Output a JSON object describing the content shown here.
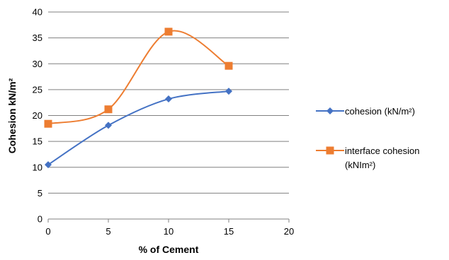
{
  "chart_data": {
    "type": "line",
    "xlabel": "% of Cement",
    "ylabel": "Cohesion kN/m²",
    "xlim": [
      0,
      20
    ],
    "ylim": [
      0,
      40
    ],
    "xticks": [
      "0",
      "5",
      "10",
      "15",
      "20"
    ],
    "yticks": [
      "0",
      "5",
      "10",
      "15",
      "20",
      "25",
      "30",
      "35",
      "40"
    ],
    "grid": "horizontal",
    "legend_position": "right",
    "smooth": true,
    "series": [
      {
        "name": "cohesion (kN/m²)",
        "color": "#4472C4",
        "marker": "diamond",
        "x": [
          0,
          5,
          10,
          15
        ],
        "y": [
          10.5,
          18.1,
          23.2,
          24.7
        ]
      },
      {
        "name_lines": [
          "interface cohesion",
          "(kNIm²)"
        ],
        "color": "#ED7D31",
        "marker": "square",
        "x": [
          0,
          5,
          10,
          15
        ],
        "y": [
          18.4,
          21.2,
          36.2,
          29.6
        ]
      }
    ]
  }
}
